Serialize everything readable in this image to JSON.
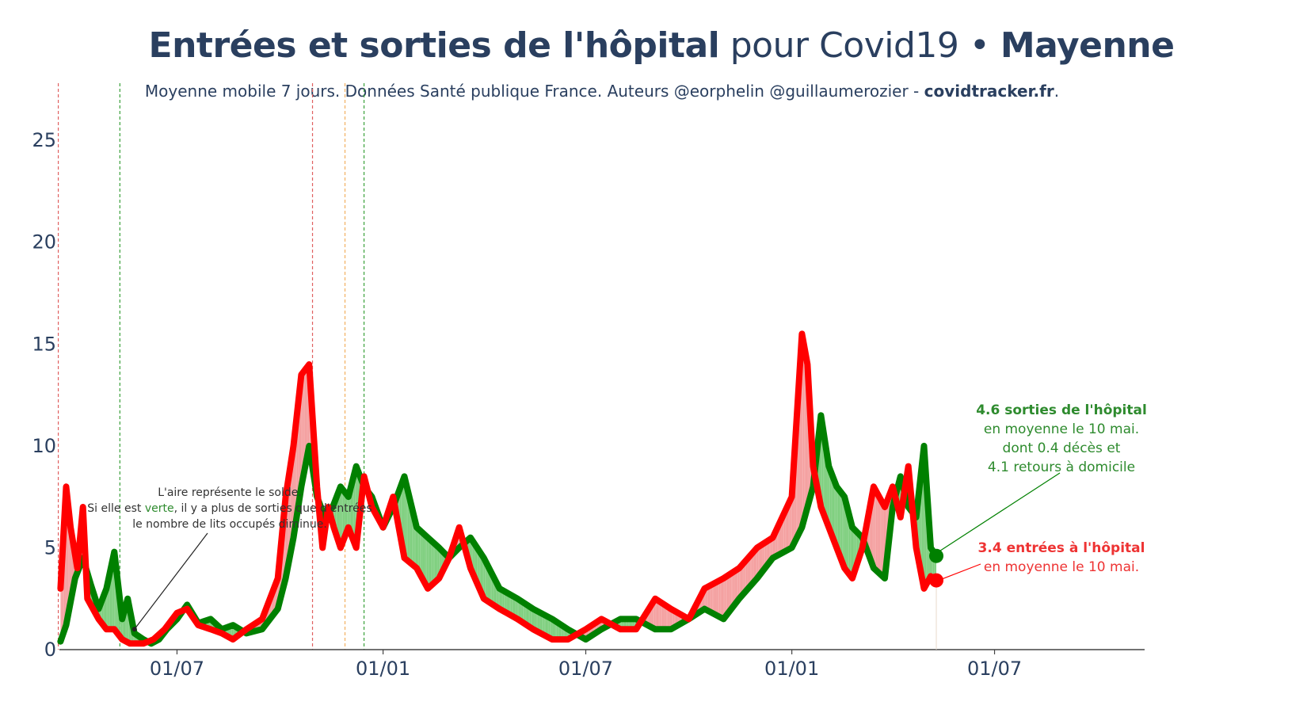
{
  "title": {
    "bold_part": "Entrées et sorties de l'hôpital",
    "normal_part": " pour Covid19 • ",
    "region": "Mayenne"
  },
  "subtitle": {
    "text": "Moyenne mobile 7 jours. Données Santé publique France. Auteurs @eorphelin @guillaumerozier - ",
    "site": "covidtracker.fr",
    "end": "."
  },
  "annotations": {
    "solde": {
      "line1": "L'aire représente le solde.",
      "line2_a": "Si elle est ",
      "line2_word": "verte",
      "line2_b": ", il y a plus de sorties que d'entrées",
      "line3": "le nombre de lits occupés diminue."
    },
    "sorties": {
      "bold": "4.6 sorties de l'hôpital",
      "line2": "en moyenne le 10 mai.",
      "line3": "dont 0.4 décès et",
      "line4": "4.1 retours à domicile"
    },
    "entrees": {
      "bold": "3.4 entrées à l'hôpital",
      "line2": "en moyenne le 10 mai."
    }
  },
  "colors": {
    "sorties": "#008000",
    "entrees": "#ff0000",
    "area_green": "#7fcf7f",
    "area_red": "#f4a0a0",
    "text": "#2a3f5f",
    "vline_red": "#e06060",
    "vline_green": "#3aa03a",
    "vline_orange": "#f2b060"
  },
  "chart_data": {
    "type": "line",
    "title": "Entrées et sorties de l'hôpital pour Covid19 • Mayenne",
    "xlabel": "",
    "ylabel": "",
    "ylim": [
      0,
      28
    ],
    "yticks": [
      0,
      5,
      10,
      15,
      20,
      25
    ],
    "xticks": [
      {
        "date": "2020-07-01",
        "label": "01/07"
      },
      {
        "date": "2021-01-01",
        "label": "01/01"
      },
      {
        "date": "2021-07-01",
        "label": "01/07"
      },
      {
        "date": "2022-01-01",
        "label": "01/01"
      },
      {
        "date": "2022-07-01",
        "label": "01/07"
      }
    ],
    "xrange": [
      "2020-03-18",
      "2022-11-12"
    ],
    "vertical_lines": [
      {
        "date": "2020-03-17",
        "color": "red"
      },
      {
        "date": "2020-05-11",
        "color": "green"
      },
      {
        "date": "2020-10-30",
        "color": "red"
      },
      {
        "date": "2020-11-28",
        "color": "orange"
      },
      {
        "date": "2020-12-15",
        "color": "green"
      }
    ],
    "series": [
      {
        "name": "sorties de l'hôpital",
        "x": [
          "2020-03-19",
          "2020-03-24",
          "2020-04-01",
          "2020-04-08",
          "2020-04-15",
          "2020-04-22",
          "2020-04-29",
          "2020-05-06",
          "2020-05-13",
          "2020-05-18",
          "2020-05-24",
          "2020-06-01",
          "2020-06-08",
          "2020-06-15",
          "2020-06-22",
          "2020-07-01",
          "2020-07-10",
          "2020-07-20",
          "2020-07-31",
          "2020-08-10",
          "2020-08-20",
          "2020-09-01",
          "2020-09-15",
          "2020-09-29",
          "2020-10-06",
          "2020-10-13",
          "2020-10-20",
          "2020-10-27",
          "2020-11-03",
          "2020-11-10",
          "2020-11-17",
          "2020-11-24",
          "2020-12-01",
          "2020-12-08",
          "2020-12-15",
          "2020-12-22",
          "2021-01-01",
          "2021-01-10",
          "2021-01-20",
          "2021-01-31",
          "2021-02-10",
          "2021-02-20",
          "2021-03-01",
          "2021-03-10",
          "2021-03-20",
          "2021-04-01",
          "2021-04-15",
          "2021-05-01",
          "2021-05-15",
          "2021-06-01",
          "2021-06-15",
          "2021-07-01",
          "2021-07-15",
          "2021-08-01",
          "2021-08-15",
          "2021-09-01",
          "2021-09-15",
          "2021-10-01",
          "2021-10-15",
          "2021-11-01",
          "2021-11-15",
          "2021-12-01",
          "2021-12-15",
          "2022-01-01",
          "2022-01-10",
          "2022-01-20",
          "2022-01-27",
          "2022-02-03",
          "2022-02-10",
          "2022-02-17",
          "2022-02-24",
          "2022-03-05",
          "2022-03-15",
          "2022-03-25",
          "2022-04-01",
          "2022-04-08",
          "2022-04-15",
          "2022-04-22",
          "2022-04-29",
          "2022-05-05",
          "2022-05-10"
        ],
        "values": [
          0.4,
          1.2,
          3.5,
          4.5,
          3.2,
          2.0,
          3.0,
          4.8,
          1.5,
          2.5,
          0.8,
          0.5,
          0.3,
          0.5,
          1.0,
          1.5,
          2.2,
          1.3,
          1.5,
          1.0,
          1.2,
          0.8,
          1.0,
          2.0,
          3.5,
          5.5,
          8.0,
          10.0,
          7.5,
          6.5,
          7.0,
          8.0,
          7.5,
          9.0,
          8.0,
          7.5,
          6.0,
          7.0,
          8.5,
          6.0,
          5.5,
          5.0,
          4.5,
          5.0,
          5.5,
          4.5,
          3.0,
          2.5,
          2.0,
          1.5,
          1.0,
          0.5,
          1.0,
          1.5,
          1.5,
          1.0,
          1.0,
          1.5,
          2.0,
          1.5,
          2.5,
          3.5,
          4.5,
          5.0,
          6.0,
          8.0,
          11.5,
          9.0,
          8.0,
          7.5,
          6.0,
          5.5,
          4.0,
          3.5,
          7.0,
          8.5,
          7.0,
          6.5,
          10.0,
          5.0,
          4.6
        ]
      },
      {
        "name": "entrées à l'hôpital",
        "x": [
          "2020-03-19",
          "2020-03-24",
          "2020-03-28",
          "2020-04-03",
          "2020-04-08",
          "2020-04-12",
          "2020-04-17",
          "2020-04-22",
          "2020-04-29",
          "2020-05-06",
          "2020-05-13",
          "2020-05-20",
          "2020-06-01",
          "2020-06-10",
          "2020-06-20",
          "2020-07-01",
          "2020-07-10",
          "2020-07-20",
          "2020-07-31",
          "2020-08-10",
          "2020-08-20",
          "2020-09-01",
          "2020-09-15",
          "2020-09-29",
          "2020-10-06",
          "2020-10-13",
          "2020-10-20",
          "2020-10-27",
          "2020-11-03",
          "2020-11-08",
          "2020-11-13",
          "2020-11-18",
          "2020-11-24",
          "2020-12-01",
          "2020-12-08",
          "2020-12-15",
          "2020-12-22",
          "2021-01-01",
          "2021-01-10",
          "2021-01-20",
          "2021-01-31",
          "2021-02-10",
          "2021-02-20",
          "2021-03-01",
          "2021-03-10",
          "2021-03-20",
          "2021-04-01",
          "2021-04-15",
          "2021-05-01",
          "2021-05-15",
          "2021-06-01",
          "2021-06-15",
          "2021-07-01",
          "2021-07-15",
          "2021-08-01",
          "2021-08-15",
          "2021-09-01",
          "2021-09-15",
          "2021-10-01",
          "2021-10-15",
          "2021-11-01",
          "2021-11-15",
          "2021-12-01",
          "2021-12-15",
          "2022-01-01",
          "2022-01-10",
          "2022-01-15",
          "2022-01-20",
          "2022-01-27",
          "2022-02-03",
          "2022-02-10",
          "2022-02-17",
          "2022-02-24",
          "2022-03-05",
          "2022-03-15",
          "2022-03-25",
          "2022-04-01",
          "2022-04-08",
          "2022-04-15",
          "2022-04-22",
          "2022-04-29",
          "2022-05-05",
          "2022-05-10"
        ],
        "values": [
          3.0,
          8.0,
          6.0,
          4.0,
          7.0,
          2.5,
          2.0,
          1.5,
          1.0,
          1.0,
          0.5,
          0.3,
          0.3,
          0.5,
          1.0,
          1.8,
          2.0,
          1.2,
          1.0,
          0.8,
          0.5,
          1.0,
          1.5,
          3.5,
          7.5,
          10.0,
          13.5,
          14.0,
          8.0,
          5.0,
          7.0,
          6.0,
          5.0,
          6.0,
          5.0,
          8.5,
          7.0,
          6.0,
          7.5,
          4.5,
          4.0,
          3.0,
          3.5,
          4.5,
          6.0,
          4.0,
          2.5,
          2.0,
          1.5,
          1.0,
          0.5,
          0.5,
          1.0,
          1.5,
          1.0,
          1.0,
          2.5,
          2.0,
          1.5,
          3.0,
          3.5,
          4.0,
          5.0,
          5.5,
          7.5,
          15.5,
          14.0,
          9.0,
          7.0,
          6.0,
          5.0,
          4.0,
          3.5,
          5.0,
          8.0,
          7.0,
          8.0,
          6.5,
          9.0,
          5.0,
          3.0,
          3.6,
          3.4
        ]
      }
    ]
  }
}
